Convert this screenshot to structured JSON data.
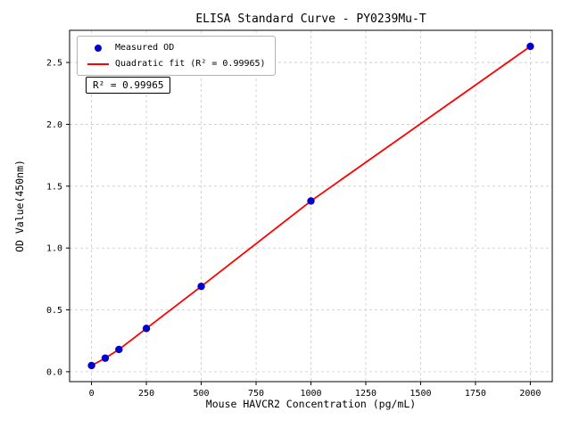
{
  "chart_data": {
    "type": "scatter",
    "title": "ELISA Standard Curve - PY0239Mu-T",
    "xlabel": "Mouse HAVCR2 Concentration (pg/mL)",
    "ylabel": "OD Value(450nm)",
    "annotation": "R² = 0.99965",
    "r_squared": 0.99965,
    "grid": true,
    "legend_position": "upper-left",
    "xlim": [
      -100,
      2100
    ],
    "ylim": [
      -0.08,
      2.76
    ],
    "x_ticks": [
      0,
      250,
      500,
      750,
      1000,
      1250,
      1500,
      1750,
      2000
    ],
    "x_tick_labels": [
      "0",
      "250",
      "500",
      "750",
      "1000",
      "1250",
      "1500",
      "1750",
      "2000"
    ],
    "y_ticks": [
      0.0,
      0.5,
      1.0,
      1.5,
      2.0,
      2.5
    ],
    "y_tick_labels": [
      "0.0",
      "0.5",
      "1.0",
      "1.5",
      "2.0",
      "2.5"
    ],
    "series": [
      {
        "name": "Measured OD",
        "type": "scatter",
        "color": "#0000cd",
        "x": [
          0,
          62.5,
          125,
          250,
          500,
          1000,
          2000
        ],
        "y": [
          0.05,
          0.11,
          0.18,
          0.35,
          0.69,
          1.38,
          2.63
        ]
      },
      {
        "name": "Quadratic fit (R² = 0.99965)",
        "type": "line",
        "color": "#ff0000",
        "x": [
          0,
          62.5,
          125,
          250,
          500,
          1000,
          2000
        ],
        "y": [
          0.05,
          0.11,
          0.18,
          0.35,
          0.69,
          1.38,
          2.63
        ]
      }
    ]
  }
}
